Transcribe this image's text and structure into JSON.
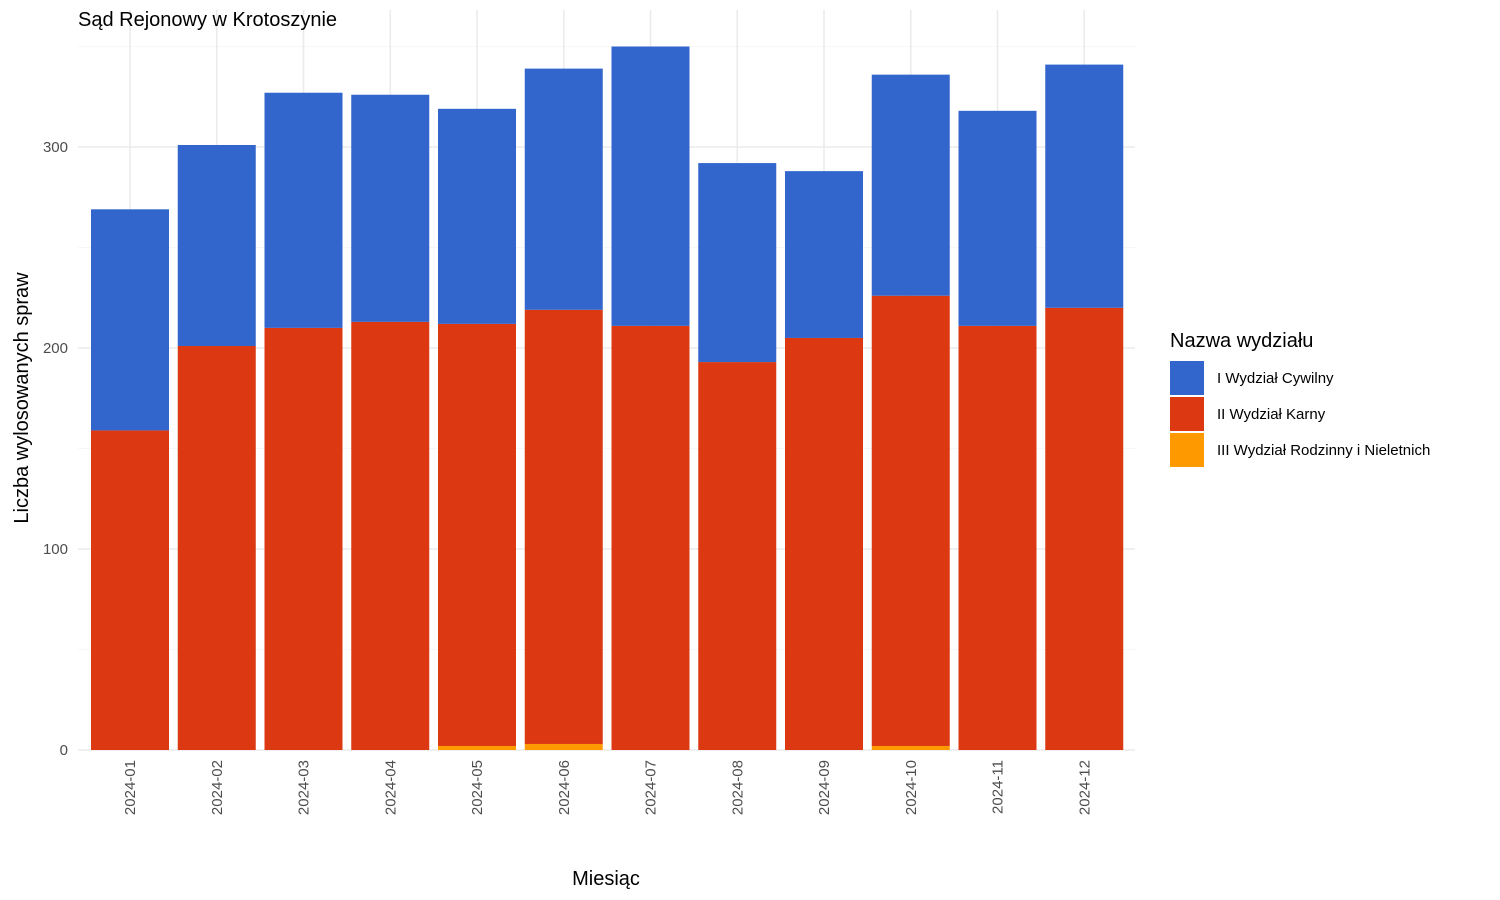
{
  "chart_data": {
    "type": "bar",
    "stacked": true,
    "title": "Sąd Rejonowy w Krotoszynie",
    "xlabel": "Miesiąc",
    "ylabel": "Liczba wylosowanych spraw",
    "ylim": [
      0,
      350
    ],
    "yticks": [
      0,
      100,
      200,
      300
    ],
    "grid": true,
    "legend": {
      "title": "Nazwa wydziału",
      "position": "right"
    },
    "categories": [
      "2024-01",
      "2024-02",
      "2024-03",
      "2024-04",
      "2024-05",
      "2024-06",
      "2024-07",
      "2024-08",
      "2024-09",
      "2024-10",
      "2024-11",
      "2024-12"
    ],
    "series": [
      {
        "name": "III Wydział Rodzinny i Nieletnich",
        "color": "#FF9900",
        "values": [
          0,
          0,
          0,
          0,
          2,
          3,
          0,
          0,
          0,
          2,
          0,
          0
        ]
      },
      {
        "name": "II Wydział Karny",
        "color": "#DC3912",
        "values": [
          159,
          201,
          210,
          213,
          210,
          216,
          211,
          193,
          205,
          224,
          211,
          220
        ]
      },
      {
        "name": "I Wydział Cywilny",
        "color": "#3366CC",
        "values": [
          110,
          100,
          117,
          113,
          107,
          120,
          139,
          99,
          83,
          110,
          107,
          121
        ]
      }
    ],
    "legend_order": [
      "I Wydział Cywilny",
      "II Wydział Karny",
      "III Wydział Rodzinny i Nieletnich"
    ]
  }
}
